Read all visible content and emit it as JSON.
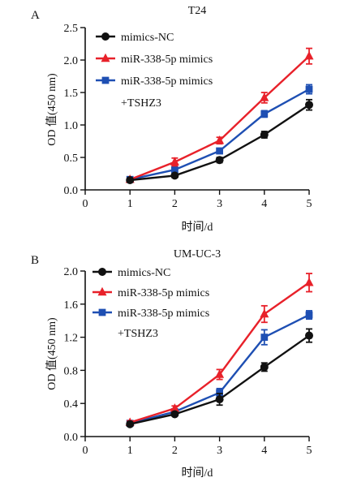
{
  "colors": {
    "axis": "#111111",
    "mimics_nc": "#111111",
    "mir_338_5p_mimics": "#e8212a",
    "mir_338_5p_mimics_tshz3": "#1e4fb3"
  },
  "chart_data": [
    {
      "type": "line",
      "panel_label": "A",
      "title": "T24",
      "xlabel": "时间/d",
      "ylabel": "OD 值(450 nm)",
      "x": [
        1,
        2,
        3,
        4,
        5
      ],
      "xlim": [
        0,
        5
      ],
      "ylim": [
        0,
        2.5
      ],
      "xticks": [
        "0",
        "1",
        "2",
        "3",
        "4",
        "5"
      ],
      "yticks": [
        "0.0",
        "0.5",
        "1.0",
        "1.5",
        "2.0",
        "2.5"
      ],
      "grid": false,
      "legend_position": "top-left",
      "series": [
        {
          "name": "mimics-NC",
          "name_lines": [
            "mimics-NC"
          ],
          "marker": "circle",
          "color": "#111111",
          "values": [
            0.15,
            0.22,
            0.46,
            0.85,
            1.31
          ],
          "error": [
            0.02,
            0.03,
            0.04,
            0.05,
            0.08
          ]
        },
        {
          "name": "miR-338-5p mimics",
          "name_lines": [
            "miR-338-5p mimics"
          ],
          "marker": "triangle",
          "color": "#e8212a",
          "values": [
            0.16,
            0.43,
            0.76,
            1.42,
            2.06
          ],
          "error": [
            0.02,
            0.06,
            0.05,
            0.08,
            0.12
          ]
        },
        {
          "name": "miR-338-5p mimics +TSHZ3",
          "name_lines": [
            "miR-338-5p mimics",
            "+TSHZ3"
          ],
          "marker": "square",
          "color": "#1e4fb3",
          "values": [
            0.16,
            0.31,
            0.6,
            1.17,
            1.55
          ],
          "error": [
            0.02,
            0.03,
            0.04,
            0.05,
            0.07
          ]
        }
      ]
    },
    {
      "type": "line",
      "panel_label": "B",
      "title": "UM-UC-3",
      "xlabel": "时间/d",
      "ylabel": "OD 值(450 nm)",
      "x": [
        1,
        2,
        3,
        4,
        5
      ],
      "xlim": [
        0,
        5
      ],
      "ylim": [
        0,
        2.0
      ],
      "xticks": [
        "0",
        "1",
        "2",
        "3",
        "4",
        "5"
      ],
      "yticks": [
        "0.0",
        "0.4",
        "0.8",
        "1.2",
        "1.6",
        "2.0"
      ],
      "grid": false,
      "legend_position": "top-left",
      "series": [
        {
          "name": "mimics-NC",
          "name_lines": [
            "mimics-NC"
          ],
          "marker": "circle",
          "color": "#111111",
          "values": [
            0.15,
            0.27,
            0.45,
            0.84,
            1.22
          ],
          "error": [
            0.02,
            0.02,
            0.07,
            0.05,
            0.08
          ]
        },
        {
          "name": "miR-338-5p mimics",
          "name_lines": [
            "miR-338-5p mimics"
          ],
          "marker": "triangle",
          "color": "#e8212a",
          "values": [
            0.17,
            0.34,
            0.75,
            1.48,
            1.86
          ],
          "error": [
            0.02,
            0.03,
            0.06,
            0.1,
            0.11
          ]
        },
        {
          "name": "miR-338-5p mimics +TSHZ3",
          "name_lines": [
            "miR-338-5p mimics",
            "+TSHZ3"
          ],
          "marker": "square",
          "color": "#1e4fb3",
          "values": [
            0.16,
            0.3,
            0.53,
            1.2,
            1.47
          ],
          "error": [
            0.02,
            0.02,
            0.05,
            0.09,
            0.05
          ]
        }
      ]
    }
  ]
}
